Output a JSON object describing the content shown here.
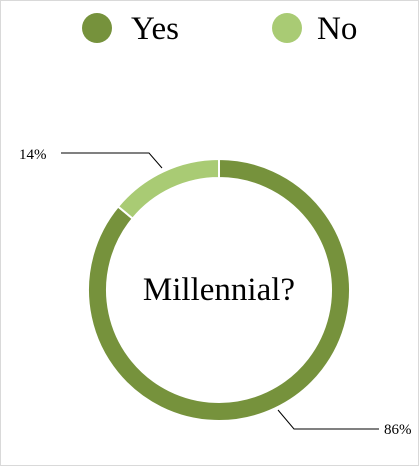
{
  "chart_data": {
    "type": "pie",
    "variant": "doughnut",
    "title": "",
    "center_label": "Millennial?",
    "legend_position": "top",
    "categories": [
      "Yes",
      "No"
    ],
    "values": [
      86,
      14
    ],
    "data_labels": [
      "86%",
      "14%"
    ],
    "colors": [
      "#76923c",
      "#a9cb74"
    ],
    "legend": [
      {
        "name": "Yes",
        "color": "#76923c"
      },
      {
        "name": "No",
        "color": "#a9cb74"
      }
    ]
  }
}
